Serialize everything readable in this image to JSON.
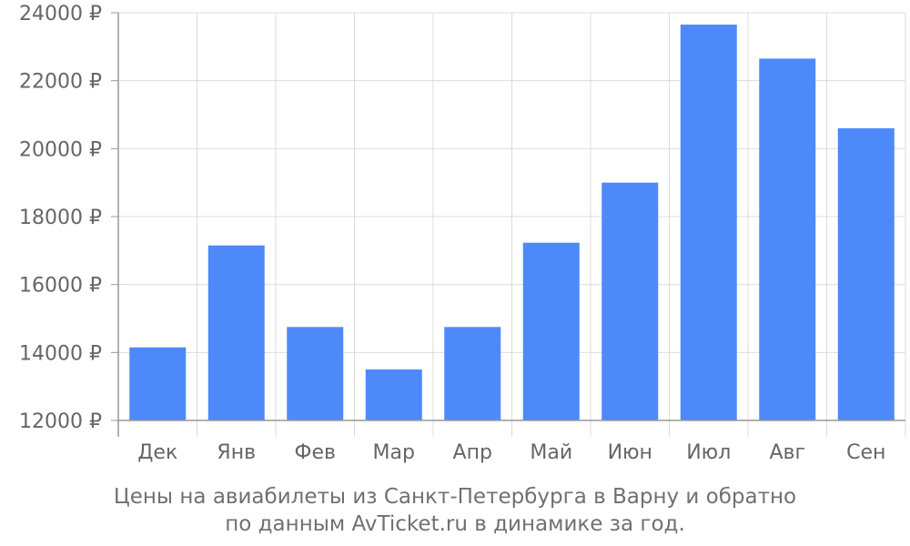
{
  "chart_data": {
    "type": "bar",
    "categories": [
      "Дек",
      "Янв",
      "Фев",
      "Мар",
      "Апр",
      "Май",
      "Июн",
      "Июл",
      "Авг",
      "Сен"
    ],
    "values": [
      14150,
      17150,
      14750,
      13500,
      14750,
      17230,
      19000,
      23650,
      22650,
      20600
    ],
    "ylim": [
      12000,
      24000
    ],
    "yticks": [
      12000,
      14000,
      16000,
      18000,
      20000,
      22000,
      24000
    ],
    "ytick_labels": [
      "12000 ₽",
      "14000 ₽",
      "16000 ₽",
      "18000 ₽",
      "20000 ₽",
      "22000 ₽",
      "24000 ₽"
    ],
    "grid": true,
    "bar_color": "#4d89f9",
    "grid_color": "#dcdcdc",
    "axis_color": "#999999"
  },
  "caption": {
    "line1": "Цены на авиабилеты из Санкт-Петербурга в Варну и обратно",
    "line2": "по данным AvTicket.ru в динамике за год."
  }
}
